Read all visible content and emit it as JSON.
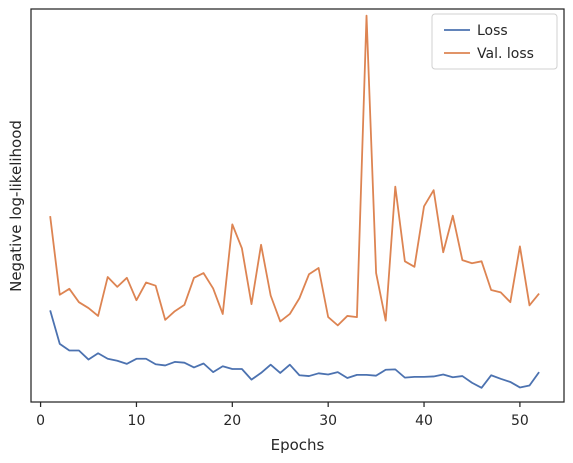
{
  "chart_data": {
    "type": "line",
    "title": "",
    "xlabel": "Epochs",
    "ylabel": "Negative log-likelihood",
    "xlim": [
      -1.0,
      54.6
    ],
    "ylim": [
      0,
      100
    ],
    "xticks": [
      0,
      10,
      20,
      30,
      40,
      50
    ],
    "xtick_labels": [
      "0",
      "10",
      "20",
      "30",
      "40",
      "50"
    ],
    "yticks_shown": false,
    "grid": false,
    "legend_position": "top-right",
    "x": [
      1,
      2,
      3,
      4,
      5,
      6,
      7,
      8,
      9,
      10,
      11,
      12,
      13,
      14,
      15,
      16,
      17,
      18,
      19,
      20,
      21,
      22,
      23,
      24,
      25,
      26,
      27,
      28,
      29,
      30,
      31,
      32,
      33,
      34,
      35,
      36,
      37,
      38,
      39,
      40,
      41,
      42,
      43,
      44,
      45,
      46,
      47,
      48,
      49,
      50,
      51,
      52
    ],
    "series": [
      {
        "name": "Loss",
        "color": "#4c72b0",
        "values": [
          23.3,
          14.8,
          13.1,
          13.1,
          10.8,
          12.4,
          11.0,
          10.5,
          9.7,
          11.0,
          11.0,
          9.6,
          9.3,
          10.2,
          10.0,
          8.8,
          9.8,
          7.6,
          9.1,
          8.4,
          8.4,
          5.7,
          7.4,
          9.5,
          7.4,
          9.5,
          6.8,
          6.6,
          7.3,
          7.0,
          7.6,
          6.1,
          6.9,
          6.9,
          6.7,
          8.2,
          8.3,
          6.2,
          6.4,
          6.4,
          6.5,
          7.0,
          6.3,
          6.6,
          4.9,
          3.6,
          6.8,
          5.9,
          5.1,
          3.7,
          4.2,
          7.6
        ]
      },
      {
        "name": "Val. loss",
        "color": "#dd8452",
        "values": [
          47.3,
          27.3,
          28.8,
          25.4,
          23.9,
          21.9,
          31.8,
          29.3,
          31.6,
          25.9,
          30.4,
          29.6,
          20.9,
          23.1,
          24.7,
          31.6,
          32.8,
          28.9,
          22.4,
          45.2,
          39.1,
          24.9,
          40.0,
          27.1,
          20.5,
          22.4,
          26.4,
          32.5,
          34.1,
          21.6,
          19.5,
          21.9,
          21.6,
          98.3,
          32.8,
          20.7,
          54.8,
          35.8,
          34.4,
          49.8,
          53.9,
          38.1,
          47.4,
          36.1,
          35.3,
          35.8,
          28.5,
          27.9,
          25.4,
          39.6,
          24.6,
          27.6
        ]
      }
    ]
  }
}
